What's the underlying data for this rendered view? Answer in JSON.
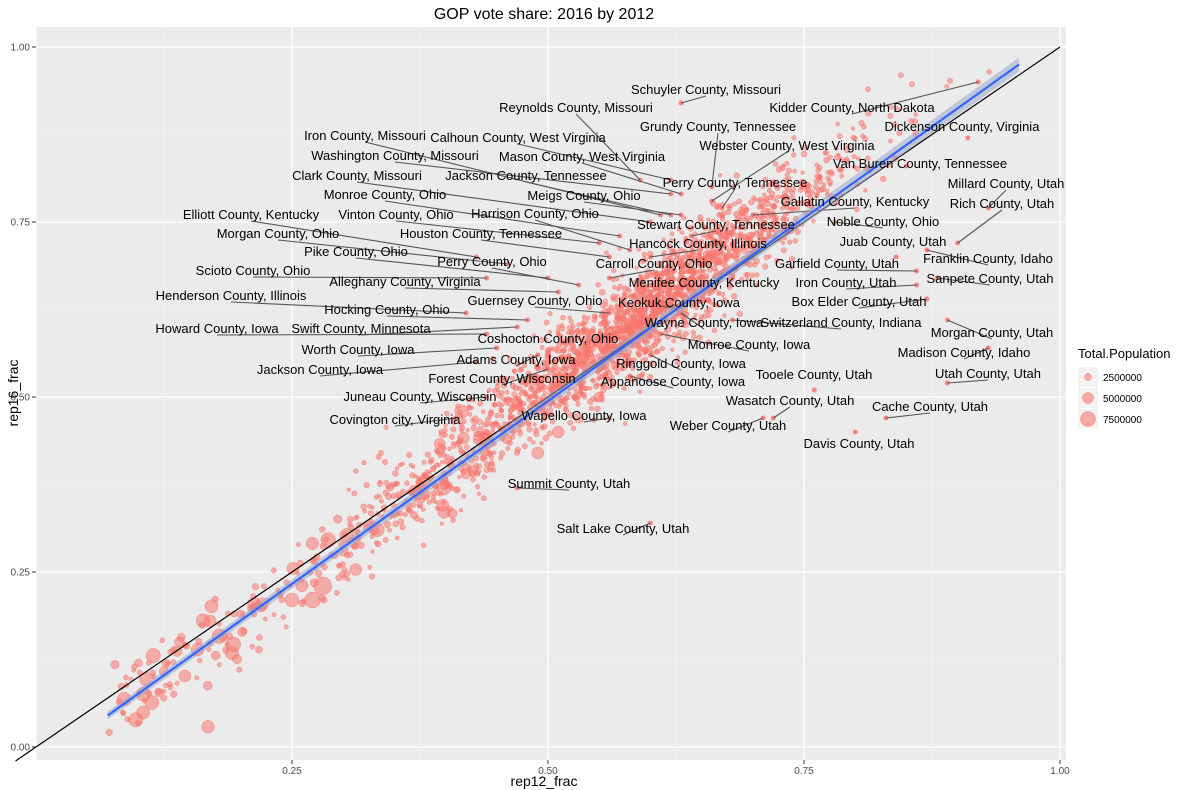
{
  "chart_data": {
    "type": "scatter",
    "title": "GOP vote share: 2016 by 2012",
    "xlabel": "rep12_frac",
    "ylabel": "rep16_frac",
    "xlim": [
      0.0,
      1.0
    ],
    "ylim": [
      0.0,
      1.0
    ],
    "x_ticks": [
      "0.25",
      "0.50",
      "0.75",
      "1.00"
    ],
    "y_ticks": [
      "0.00",
      "0.25",
      "0.50",
      "0.75",
      "1.00"
    ],
    "x_tick_values": [
      0.25,
      0.5,
      0.75,
      1.0
    ],
    "y_tick_values": [
      0.0,
      0.25,
      0.5,
      0.75,
      1.0
    ],
    "point_color": "#f8766d",
    "reference_line": {
      "slope": 1,
      "intercept": 0,
      "color": "#000000"
    },
    "fit_line": {
      "x": [
        0.07,
        0.96
      ],
      "y": [
        0.045,
        0.975
      ],
      "color": "#3366ff",
      "band": "#9aa7c9"
    },
    "legend": {
      "title": "Total.Population",
      "entries": [
        {
          "label": "2500000",
          "value": 2500000
        },
        {
          "label": "5000000",
          "value": 5000000
        },
        {
          "label": "7500000",
          "value": 7500000
        }
      ]
    },
    "highlighted": [
      {
        "x": 0.63,
        "y": 0.92,
        "label": "Schuyler County, Missouri"
      },
      {
        "x": 0.59,
        "y": 0.81,
        "label": "Reynolds County, Missouri"
      },
      {
        "x": 0.92,
        "y": 0.95,
        "label": "Kidder County, North Dakota"
      },
      {
        "x": 0.61,
        "y": 0.76,
        "label": "Iron County, Missouri"
      },
      {
        "x": 0.62,
        "y": 0.81,
        "label": "Calhoun County, West Virginia"
      },
      {
        "x": 0.66,
        "y": 0.8,
        "label": "Grundy County, Tennessee"
      },
      {
        "x": 0.91,
        "y": 0.87,
        "label": "Dickenson County, Virginia"
      },
      {
        "x": 0.62,
        "y": 0.79,
        "label": "Washington County, Missouri"
      },
      {
        "x": 0.63,
        "y": 0.79,
        "label": "Mason County, West Virginia"
      },
      {
        "x": 0.66,
        "y": 0.78,
        "label": "Webster County, West Virginia"
      },
      {
        "x": 0.6,
        "y": 0.75,
        "label": "Clark County, Missouri"
      },
      {
        "x": 0.62,
        "y": 0.76,
        "label": "Jackson County, Tennessee"
      },
      {
        "x": 0.85,
        "y": 0.83,
        "label": "Van Buren County, Tennessee"
      },
      {
        "x": 0.67,
        "y": 0.77,
        "label": "Perry County, Tennessee"
      },
      {
        "x": 0.63,
        "y": 0.76,
        "label": "Meigs County, Ohio"
      },
      {
        "x": 0.57,
        "y": 0.73,
        "label": "Monroe County, Ohio"
      },
      {
        "x": 0.93,
        "y": 0.77,
        "label": "Millard County, Utah"
      },
      {
        "x": 0.9,
        "y": 0.72,
        "label": "Rich County, Utah"
      },
      {
        "x": 0.7,
        "y": 0.76,
        "label": "Gallatin County, Kentucky"
      },
      {
        "x": 0.55,
        "y": 0.72,
        "label": "Vinton County, Ohio"
      },
      {
        "x": 0.58,
        "y": 0.71,
        "label": "Harrison County, Ohio"
      },
      {
        "x": 0.43,
        "y": 0.7,
        "label": "Elliott County, Kentucky"
      },
      {
        "x": 0.64,
        "y": 0.73,
        "label": "Stewart County, Tennessee"
      },
      {
        "x": 0.78,
        "y": 0.75,
        "label": "Noble County, Ohio"
      },
      {
        "x": 0.46,
        "y": 0.69,
        "label": "Morgan County, Ohio"
      },
      {
        "x": 0.56,
        "y": 0.7,
        "label": "Houston County, Tennessee"
      },
      {
        "x": 0.6,
        "y": 0.7,
        "label": "Hancock County, Illinois"
      },
      {
        "x": 0.84,
        "y": 0.7,
        "label": "Juab County, Utah"
      },
      {
        "x": 0.5,
        "y": 0.67,
        "label": "Pike County, Ohio"
      },
      {
        "x": 0.53,
        "y": 0.66,
        "label": "Perry County, Ohio"
      },
      {
        "x": 0.56,
        "y": 0.67,
        "label": "Carroll County, Ohio"
      },
      {
        "x": 0.86,
        "y": 0.68,
        "label": "Garfield County, Utah"
      },
      {
        "x": 0.87,
        "y": 0.71,
        "label": "Franklin County, Idaho"
      },
      {
        "x": 0.44,
        "y": 0.67,
        "label": "Scioto County, Ohio"
      },
      {
        "x": 0.51,
        "y": 0.65,
        "label": "Alleghany County, Virginia"
      },
      {
        "x": 0.64,
        "y": 0.67,
        "label": "Menifee County, Kentucky"
      },
      {
        "x": 0.86,
        "y": 0.66,
        "label": "Iron County, Utah"
      },
      {
        "x": 0.88,
        "y": 0.67,
        "label": "Sanpete County, Utah"
      },
      {
        "x": 0.42,
        "y": 0.62,
        "label": "Henderson County, Illinois"
      },
      {
        "x": 0.56,
        "y": 0.62,
        "label": "Guernsey County, Ohio"
      },
      {
        "x": 0.61,
        "y": 0.63,
        "label": "Keokuk County, Iowa"
      },
      {
        "x": 0.87,
        "y": 0.64,
        "label": "Box Elder County, Utah"
      },
      {
        "x": 0.48,
        "y": 0.61,
        "label": "Hocking County, Ohio"
      },
      {
        "x": 0.63,
        "y": 0.62,
        "label": "Wayne County, Iowa"
      },
      {
        "x": 0.68,
        "y": 0.61,
        "label": "Switzerland County, Indiana"
      },
      {
        "x": 0.44,
        "y": 0.59,
        "label": "Howard County, Iowa"
      },
      {
        "x": 0.47,
        "y": 0.6,
        "label": "Swift County, Minnesota"
      },
      {
        "x": 0.89,
        "y": 0.61,
        "label": "Morgan County, Utah"
      },
      {
        "x": 0.51,
        "y": 0.59,
        "label": "Coshocton County, Ohio"
      },
      {
        "x": 0.45,
        "y": 0.57,
        "label": "Worth County, Iowa"
      },
      {
        "x": 0.61,
        "y": 0.59,
        "label": "Monroe County, Iowa"
      },
      {
        "x": 0.93,
        "y": 0.57,
        "label": "Madison County, Idaho"
      },
      {
        "x": 0.49,
        "y": 0.56,
        "label": "Adams County, Iowa"
      },
      {
        "x": 0.43,
        "y": 0.55,
        "label": "Jackson County, Iowa"
      },
      {
        "x": 0.6,
        "y": 0.56,
        "label": "Ringgold County, Iowa"
      },
      {
        "x": 0.5,
        "y": 0.54,
        "label": "Forest County, Wisconsin"
      },
      {
        "x": 0.89,
        "y": 0.52,
        "label": "Utah County, Utah"
      },
      {
        "x": 0.58,
        "y": 0.53,
        "label": "Appanoose County, Iowa"
      },
      {
        "x": 0.76,
        "y": 0.51,
        "label": "Tooele County, Utah"
      },
      {
        "x": 0.44,
        "y": 0.5,
        "label": "Juneau County, Wisconsin"
      },
      {
        "x": 0.72,
        "y": 0.47,
        "label": "Wasatch County, Utah"
      },
      {
        "x": 0.83,
        "y": 0.47,
        "label": "Cache County, Utah"
      },
      {
        "x": 0.41,
        "y": 0.47,
        "label": "Covington city, Virginia"
      },
      {
        "x": 0.56,
        "y": 0.47,
        "label": "Wapello County, Iowa"
      },
      {
        "x": 0.71,
        "y": 0.47,
        "label": "Weber County, Utah"
      },
      {
        "x": 0.8,
        "y": 0.45,
        "label": "Davis County, Utah"
      },
      {
        "x": 0.47,
        "y": 0.37,
        "label": "Summit County, Utah"
      },
      {
        "x": 0.6,
        "y": 0.32,
        "label": "Salt Lake County, Utah"
      }
    ]
  }
}
